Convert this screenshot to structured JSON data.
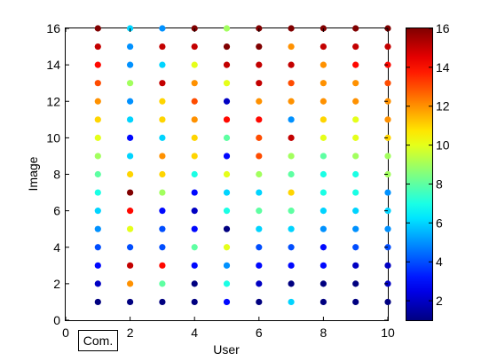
{
  "chart_data": {
    "type": "scatter",
    "xlabel": "User",
    "ylabel": "Image",
    "xlim": [
      0,
      10
    ],
    "ylim": [
      0,
      16
    ],
    "xticks": [
      0,
      2,
      4,
      6,
      8,
      10
    ],
    "yticks": [
      0,
      2,
      4,
      6,
      8,
      10,
      12,
      14,
      16
    ],
    "grid": false,
    "users": [
      1,
      2,
      3,
      4,
      5,
      6,
      7,
      8,
      9,
      10
    ],
    "images": [
      1,
      2,
      3,
      4,
      5,
      6,
      7,
      8,
      9,
      10,
      11,
      12,
      13,
      14,
      15,
      16
    ],
    "rank_matrix_by_user": [
      [
        1,
        2,
        3,
        4,
        5,
        6,
        7,
        8,
        9,
        10,
        11,
        12,
        13,
        14,
        15,
        16
      ],
      [
        1,
        12,
        15,
        4,
        10,
        14,
        16,
        11,
        6,
        3,
        6,
        5,
        9,
        5,
        5,
        6
      ],
      [
        1,
        8,
        14,
        4,
        4,
        3,
        9,
        11,
        12,
        6,
        11,
        11,
        15,
        6,
        15,
        5
      ],
      [
        1,
        1,
        3,
        8,
        3,
        2,
        3,
        7,
        11,
        11,
        12,
        13,
        12,
        10,
        15,
        16
      ],
      [
        3,
        7,
        5,
        10,
        1,
        7,
        6,
        10,
        3,
        8,
        14,
        2,
        10,
        15,
        16,
        9
      ],
      [
        1,
        2,
        3,
        4,
        6,
        8,
        6,
        9,
        13,
        13,
        14,
        12,
        15,
        15,
        16,
        16
      ],
      [
        6,
        1,
        3,
        4,
        6,
        8,
        11,
        8,
        9,
        15,
        5,
        12,
        13,
        15,
        12,
        16
      ],
      [
        1,
        1,
        3,
        3,
        5,
        6,
        7,
        7,
        8,
        10,
        11,
        12,
        12,
        12,
        15,
        16
      ],
      [
        1,
        1,
        2,
        4,
        5,
        6,
        7,
        7,
        9,
        10,
        10,
        12,
        12,
        14,
        15,
        16
      ],
      [
        1,
        2,
        2,
        4,
        5,
        6,
        5,
        9,
        9,
        11,
        12,
        12,
        13,
        14,
        15,
        16
      ]
    ],
    "colorbar": {
      "colormap": "jet",
      "range": [
        1,
        16
      ],
      "ticks": [
        2,
        4,
        6,
        8,
        10,
        12,
        14,
        16
      ]
    },
    "legend": {
      "label": "Com.",
      "placement": "bottom-left"
    }
  }
}
